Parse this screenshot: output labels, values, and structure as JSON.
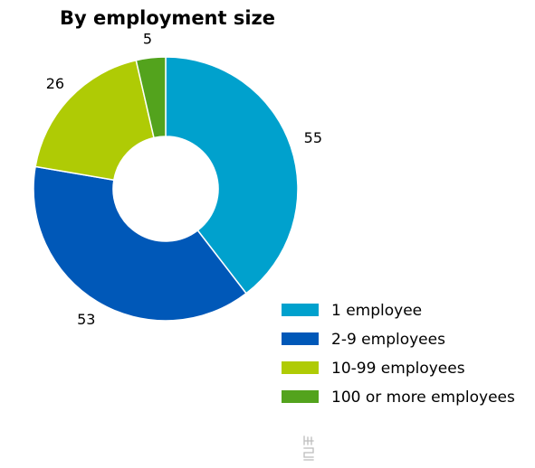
{
  "chart_data": {
    "type": "pie",
    "title": "By employment size",
    "categories": [
      "1 employee",
      "2-9 employees",
      "10-99 employees",
      "100 or more employees"
    ],
    "values": [
      55,
      53,
      26,
      5
    ],
    "colors": [
      "#00a1cd",
      "#0058b8",
      "#afcb05",
      "#53a31d"
    ],
    "legend_position": "bottom-right",
    "donut": true
  },
  "logo": {
    "name": "cbs-logo-icon",
    "color": "#bcbcbc"
  }
}
